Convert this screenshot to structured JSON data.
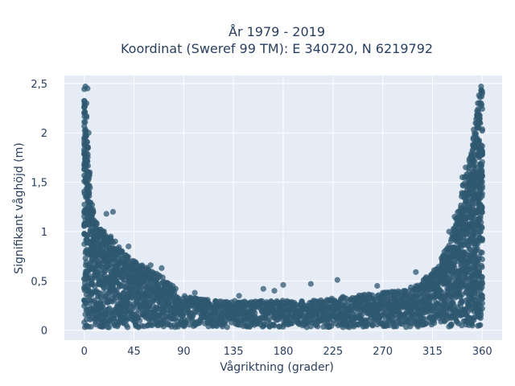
{
  "chart_data": {
    "type": "scatter",
    "title_lines": [
      "År 1979 - 2019",
      "Koordinat (Sweref 99 TM): E 340720, N 6219792"
    ],
    "xlabel": "Vågriktning (grader)",
    "ylabel": "Signifikant våghöjd (m)",
    "xlim": [
      -18,
      378
    ],
    "ylim": [
      -0.1,
      2.58
    ],
    "x_ticks": [
      0,
      45,
      90,
      135,
      180,
      225,
      270,
      315,
      360
    ],
    "x_tick_labels": [
      "0",
      "45",
      "90",
      "135",
      "180",
      "225",
      "270",
      "315",
      "360"
    ],
    "y_ticks": [
      0,
      0.5,
      1,
      1.5,
      2,
      2.5
    ],
    "y_tick_labels": [
      "0",
      "0,5",
      "1",
      "1,5",
      "2",
      "2,5"
    ],
    "grid": true,
    "marker_color": "#2f5870",
    "background_color": "#e5ecf6",
    "envelope": {
      "x": [
        0,
        5,
        10,
        20,
        30,
        45,
        60,
        70,
        80,
        90,
        120,
        150,
        180,
        210,
        240,
        270,
        290,
        300,
        310,
        320,
        330,
        340,
        345,
        350,
        355,
        358,
        360
      ],
      "y_max": [
        2.45,
        1.5,
        1.1,
        1.0,
        0.85,
        0.7,
        0.62,
        0.55,
        0.45,
        0.35,
        0.3,
        0.3,
        0.3,
        0.3,
        0.35,
        0.38,
        0.42,
        0.45,
        0.55,
        0.65,
        0.9,
        1.3,
        1.6,
        1.85,
        2.2,
        2.45,
        2.45
      ]
    },
    "outliers": [
      {
        "x": 1,
        "y": 2.47
      },
      {
        "x": 3,
        "y": 2.45
      },
      {
        "x": 2,
        "y": 2.3
      },
      {
        "x": 0,
        "y": 2.2
      },
      {
        "x": 4,
        "y": 2.0
      },
      {
        "x": 1,
        "y": 1.95
      },
      {
        "x": 2,
        "y": 1.8
      },
      {
        "x": 5,
        "y": 1.6
      },
      {
        "x": 3,
        "y": 1.45
      },
      {
        "x": 4,
        "y": 1.3
      },
      {
        "x": 6,
        "y": 1.2
      },
      {
        "x": 20,
        "y": 1.18
      },
      {
        "x": 26,
        "y": 1.2
      },
      {
        "x": 24,
        "y": 0.95
      },
      {
        "x": 28,
        "y": 0.9
      },
      {
        "x": 40,
        "y": 0.85
      },
      {
        "x": 50,
        "y": 0.65
      },
      {
        "x": 60,
        "y": 0.66
      },
      {
        "x": 70,
        "y": 0.63
      },
      {
        "x": 100,
        "y": 0.38
      },
      {
        "x": 140,
        "y": 0.35
      },
      {
        "x": 162,
        "y": 0.42
      },
      {
        "x": 172,
        "y": 0.4
      },
      {
        "x": 180,
        "y": 0.46
      },
      {
        "x": 205,
        "y": 0.47
      },
      {
        "x": 229,
        "y": 0.51
      },
      {
        "x": 265,
        "y": 0.45
      },
      {
        "x": 290,
        "y": 0.4
      },
      {
        "x": 300,
        "y": 0.59
      },
      {
        "x": 310,
        "y": 0.52
      },
      {
        "x": 325,
        "y": 0.75
      },
      {
        "x": 330,
        "y": 1.0
      },
      {
        "x": 335,
        "y": 1.15
      },
      {
        "x": 342,
        "y": 1.55
      },
      {
        "x": 345,
        "y": 1.65
      },
      {
        "x": 352,
        "y": 1.95
      },
      {
        "x": 354,
        "y": 2.1
      },
      {
        "x": 356,
        "y": 2.3
      },
      {
        "x": 357,
        "y": 2.38
      },
      {
        "x": 359,
        "y": 2.47
      }
    ]
  }
}
